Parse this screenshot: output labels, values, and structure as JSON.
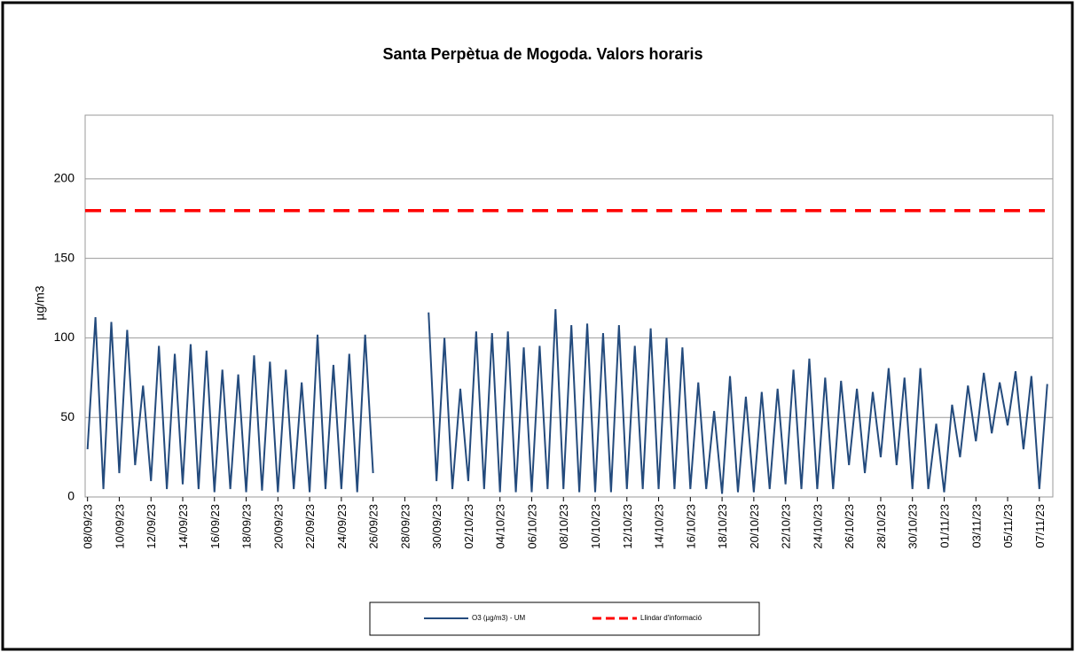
{
  "chart_data": {
    "type": "line",
    "title": "Santa Perpètua de Mogoda. Valors horaris",
    "y_label": "µg/m3",
    "categories": [
      "08/09/23",
      null,
      null,
      null,
      "10/09/23",
      null,
      null,
      null,
      "12/09/23",
      null,
      null,
      null,
      "14/09/23",
      null,
      null,
      null,
      "16/09/23",
      null,
      null,
      null,
      "18/09/23",
      null,
      null,
      null,
      "20/09/23",
      null,
      null,
      null,
      "22/09/23",
      null,
      null,
      null,
      "24/09/23",
      null,
      null,
      null,
      "26/09/23",
      null,
      null,
      null,
      "28/09/23",
      null,
      null,
      null,
      "30/09/23",
      null,
      null,
      null,
      "02/10/23",
      null,
      null,
      null,
      "04/10/23",
      null,
      null,
      null,
      "06/10/23",
      null,
      null,
      null,
      "08/10/23",
      null,
      null,
      null,
      "10/10/23",
      null,
      null,
      null,
      "12/10/23",
      null,
      null,
      null,
      "14/10/23",
      null,
      null,
      null,
      "16/10/23",
      null,
      null,
      null,
      "18/10/23",
      null,
      null,
      null,
      "20/10/23",
      null,
      null,
      null,
      "22/10/23",
      null,
      null,
      null,
      "24/10/23",
      null,
      null,
      null,
      "26/10/23",
      null,
      null,
      null,
      "28/10/23",
      null,
      null,
      null,
      "30/10/23",
      null,
      null,
      null,
      "01/11/23",
      null,
      null,
      null,
      "03/11/23",
      null,
      null,
      null,
      "05/11/23",
      null,
      null,
      null,
      "07/11/23",
      null
    ],
    "series": [
      {
        "name": "O3 (µg/m3) - UM",
        "color": "#244b7d",
        "values": [
          30,
          113,
          5,
          110,
          15,
          105,
          20,
          70,
          10,
          95,
          5,
          90,
          8,
          96,
          5,
          92,
          3,
          80,
          5,
          77,
          3,
          89,
          4,
          85,
          3,
          80,
          5,
          72,
          3,
          102,
          5,
          83,
          5,
          90,
          3,
          102,
          15,
          null,
          null,
          null,
          null,
          null,
          null,
          116,
          10,
          100,
          5,
          68,
          10,
          104,
          5,
          103,
          3,
          104,
          3,
          94,
          3,
          95,
          5,
          118,
          5,
          108,
          3,
          109,
          3,
          103,
          3,
          108,
          5,
          95,
          5,
          106,
          5,
          100,
          5,
          94,
          5,
          72,
          5,
          54,
          2,
          76,
          3,
          63,
          3,
          66,
          5,
          68,
          8,
          80,
          5,
          87,
          5,
          75,
          5,
          73,
          20,
          68,
          15,
          66,
          25,
          81,
          20,
          75,
          5,
          81,
          5,
          46,
          3,
          58,
          25,
          70,
          35,
          78,
          40,
          72,
          45,
          79,
          30,
          76,
          5,
          71
        ]
      }
    ],
    "reference_line": {
      "name": "Llindar d'informació",
      "value": 180,
      "color": "#ff0000"
    },
    "ylim": [
      0,
      240
    ],
    "yticks": [
      0,
      50,
      100,
      150,
      200
    ],
    "grid": true
  }
}
